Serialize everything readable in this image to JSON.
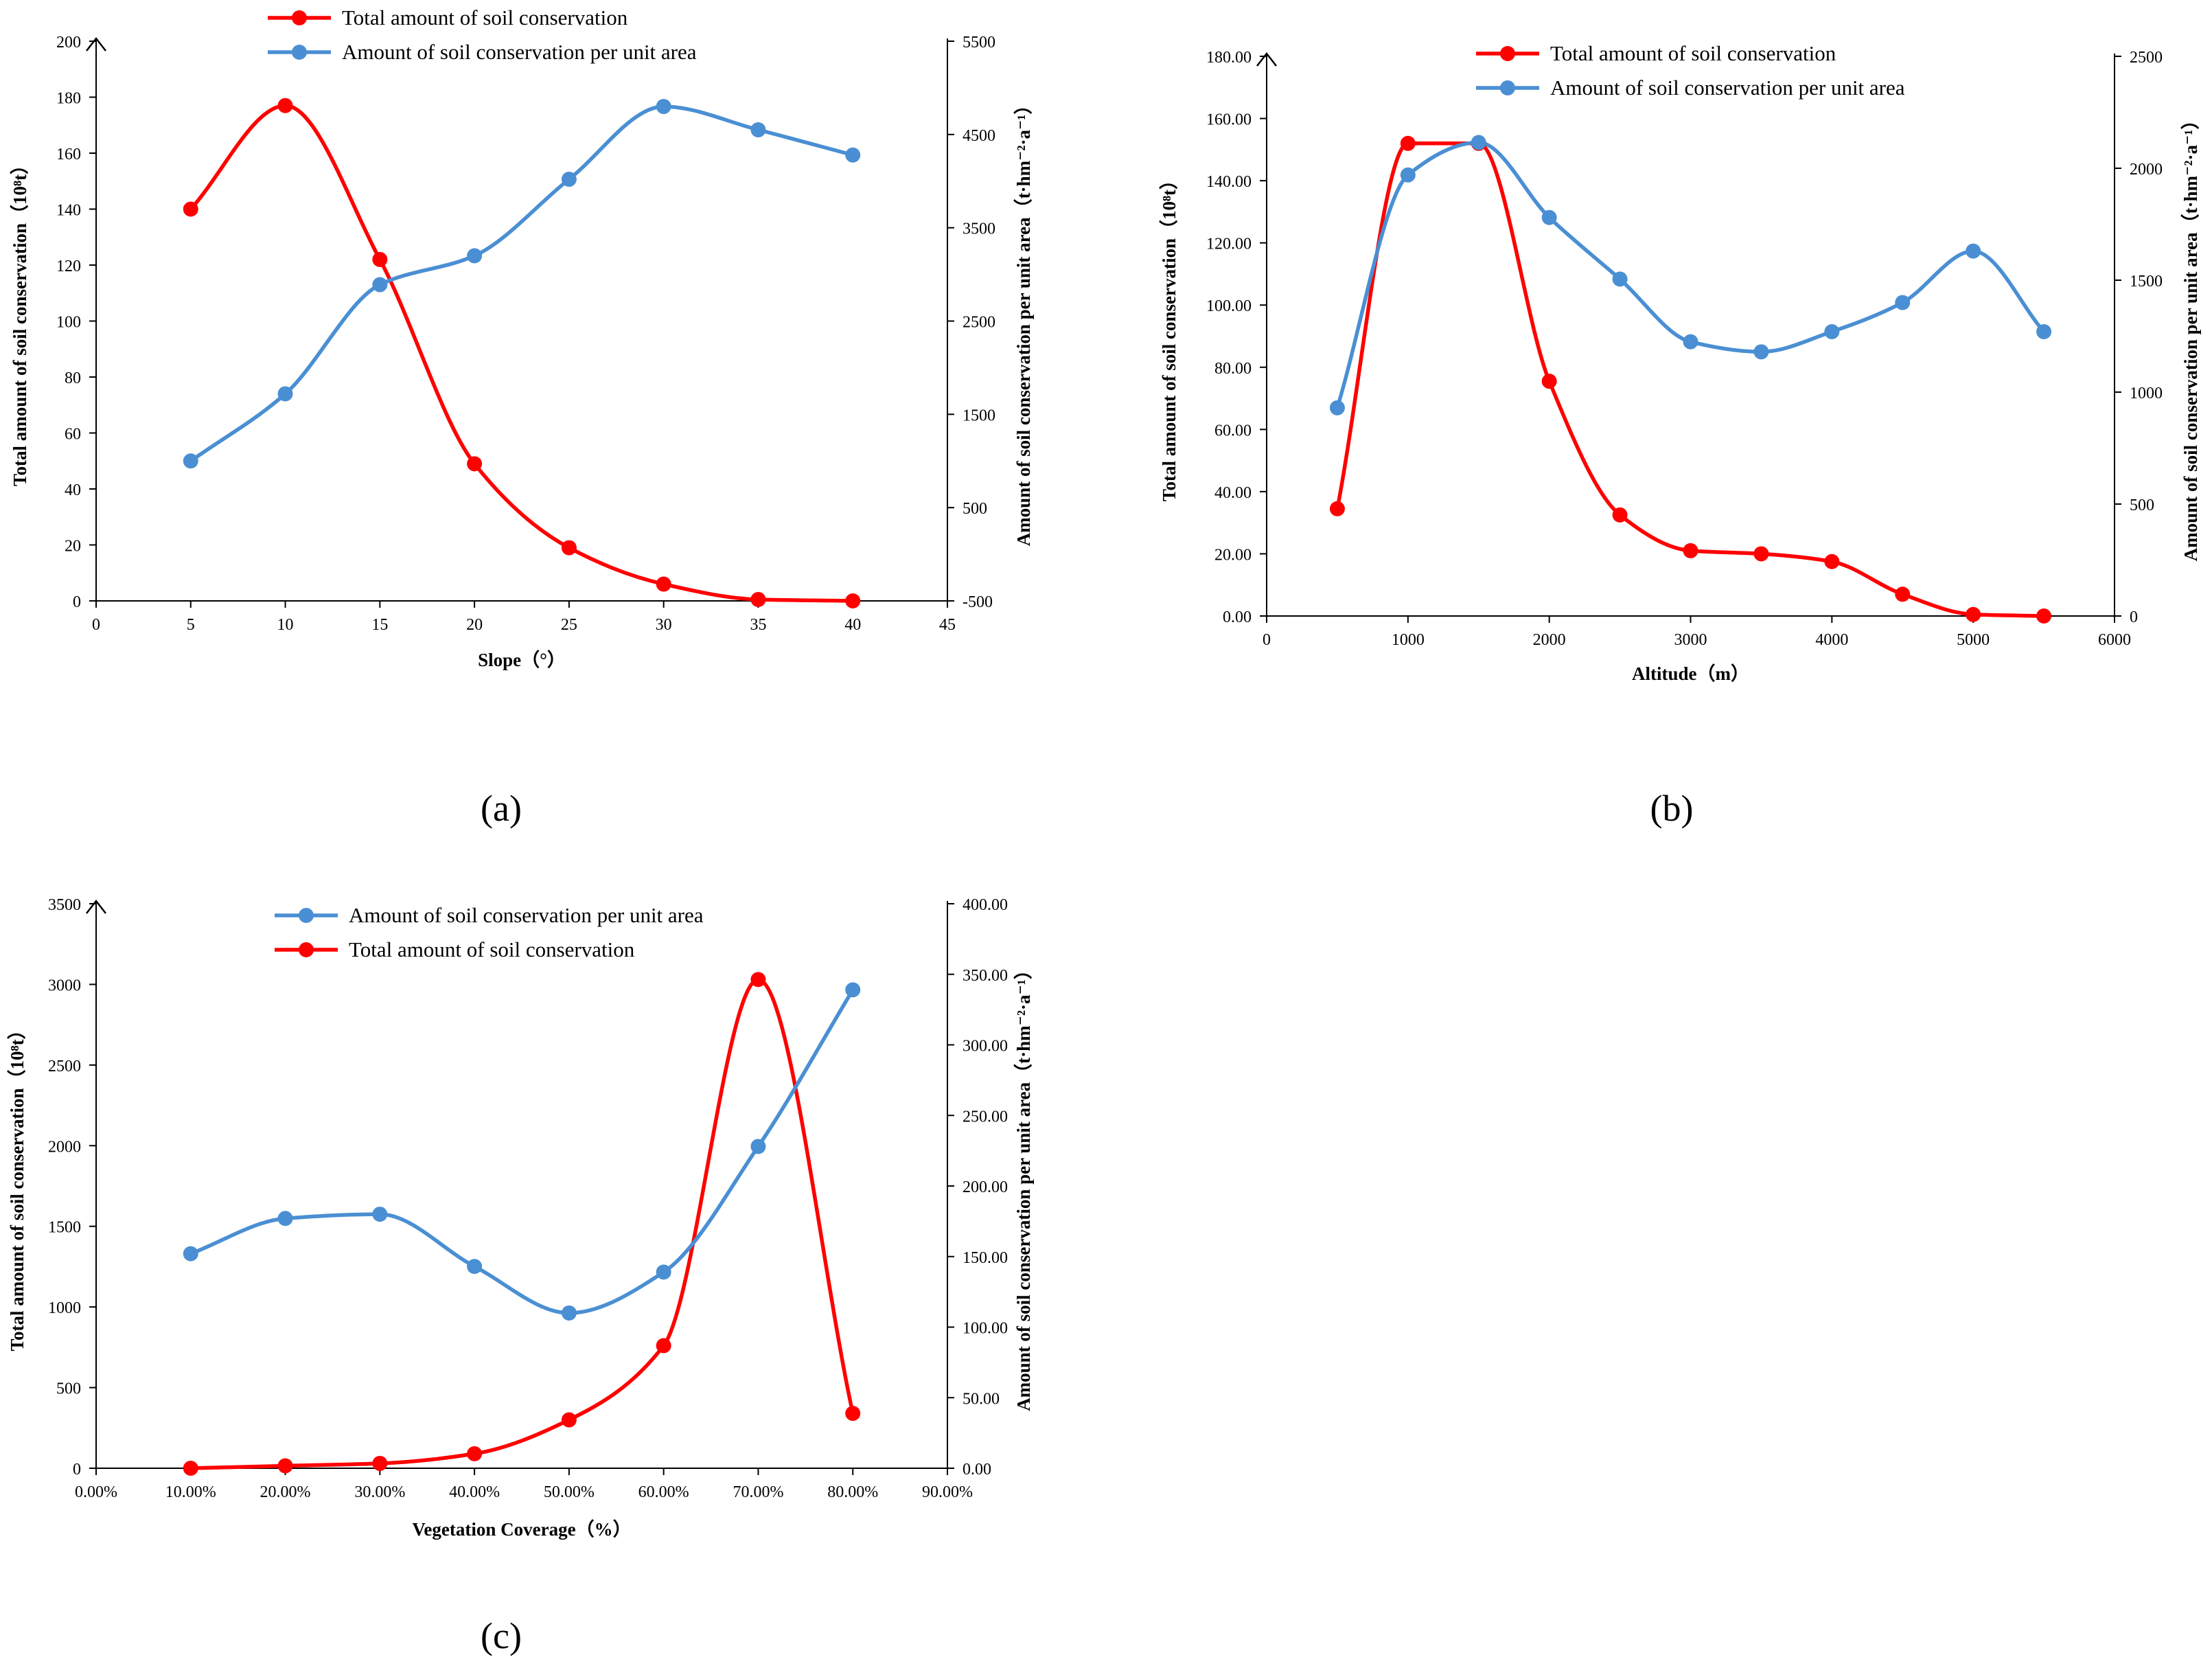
{
  "chart_data": [
    {
      "id": "a",
      "type": "line",
      "panel_label": "(a)",
      "xlabel": "Slope（°）",
      "ylabel_left": "Total amount of soil conservation（10⁸t）",
      "ylabel_right": "Amount of soil conservation per unit area（t·hm⁻²·a⁻¹）",
      "xlim": [
        0,
        45
      ],
      "xticks": [
        0,
        5,
        10,
        15,
        20,
        25,
        30,
        35,
        40,
        45
      ],
      "xtick_labels": [
        "0",
        "5",
        "10",
        "15",
        "20",
        "25",
        "30",
        "35",
        "40",
        "45"
      ],
      "ylim_left": [
        0,
        200
      ],
      "yticks_left": [
        0,
        20,
        40,
        60,
        80,
        100,
        120,
        140,
        160,
        180,
        200
      ],
      "ytick_labels_left": [
        "0",
        "20",
        "40",
        "60",
        "80",
        "100",
        "120",
        "140",
        "160",
        "180",
        "200"
      ],
      "ylim_right": [
        -500,
        5500
      ],
      "yticks_right": [
        -500,
        500,
        1500,
        2500,
        3500,
        4500,
        5500
      ],
      "ytick_labels_right": [
        "-500",
        "500",
        "1500",
        "2500",
        "3500",
        "4500",
        "5500"
      ],
      "x": [
        5,
        10,
        15,
        20,
        25,
        30,
        35,
        40
      ],
      "legend_order": [
        0,
        1
      ],
      "series": [
        {
          "name": "Total amount of soil conservation",
          "axis": "left",
          "color": "#ff0000",
          "values": [
            140,
            177,
            122,
            49,
            19,
            6,
            0.5,
            0
          ]
        },
        {
          "name": "Amount of soil conservation per unit area",
          "axis": "right",
          "color": "#4a8fd3",
          "values": [
            1000,
            1720,
            2890,
            3200,
            4020,
            4800,
            4550,
            4280
          ]
        }
      ]
    },
    {
      "id": "b",
      "type": "line",
      "panel_label": "(b)",
      "xlabel": "Altitude（m）",
      "ylabel_left": "Total amount of soil conservation（10⁸t）",
      "ylabel_right": "Amount of soil conservation per unit area（t·hm⁻²·a⁻¹）",
      "xlim": [
        0,
        6000
      ],
      "xticks": [
        0,
        1000,
        2000,
        3000,
        4000,
        5000,
        6000
      ],
      "xtick_labels": [
        "0",
        "1000",
        "2000",
        "3000",
        "4000",
        "5000",
        "6000"
      ],
      "ylim_left": [
        0,
        180
      ],
      "yticks_left": [
        0,
        20,
        40,
        60,
        80,
        100,
        120,
        140,
        160,
        180
      ],
      "ytick_labels_left": [
        "0.00",
        "20.00",
        "40.00",
        "60.00",
        "80.00",
        "100.00",
        "120.00",
        "140.00",
        "160.00",
        "180.00"
      ],
      "ylim_right": [
        0,
        2500
      ],
      "yticks_right": [
        0,
        500,
        1000,
        1500,
        2000,
        2500
      ],
      "ytick_labels_right": [
        "0",
        "500",
        "1000",
        "1500",
        "2000",
        "2500"
      ],
      "x": [
        500,
        1000,
        1500,
        2000,
        2500,
        3000,
        3500,
        4000,
        4500,
        5000,
        5500
      ],
      "legend_order": [
        0,
        1
      ],
      "series": [
        {
          "name": "Total amount of soil conservation",
          "axis": "left",
          "color": "#ff0000",
          "values": [
            34.5,
            152,
            152,
            75.5,
            32.5,
            21,
            20,
            17.5,
            7,
            0.5,
            0
          ]
        },
        {
          "name": "Amount of soil conservation per unit area",
          "axis": "right",
          "color": "#4a8fd3",
          "values": [
            930,
            1970,
            2115,
            1780,
            1505,
            1225,
            1180,
            1270,
            1400,
            1630,
            1270
          ]
        }
      ]
    },
    {
      "id": "c",
      "type": "line",
      "panel_label": "(c)",
      "xlabel": "Vegetation Coverage（%）",
      "ylabel_left": "Total amount of soil conservation（10⁸t）",
      "ylabel_right": "Amount of soil conservation per unit area（t·hm⁻²·a⁻¹）",
      "xlim": [
        0,
        90
      ],
      "xticks": [
        0,
        10,
        20,
        30,
        40,
        50,
        60,
        70,
        80,
        90
      ],
      "xtick_labels": [
        "0.00%",
        "10.00%",
        "20.00%",
        "30.00%",
        "40.00%",
        "50.00%",
        "60.00%",
        "70.00%",
        "80.00%",
        "90.00%"
      ],
      "ylim_left": [
        0,
        3500
      ],
      "yticks_left": [
        0,
        500,
        1000,
        1500,
        2000,
        2500,
        3000,
        3500
      ],
      "ytick_labels_left": [
        "0",
        "500",
        "1000",
        "1500",
        "2000",
        "2500",
        "3000",
        "3500"
      ],
      "ylim_right": [
        0,
        400
      ],
      "yticks_right": [
        0,
        50,
        100,
        150,
        200,
        250,
        300,
        350,
        400
      ],
      "ytick_labels_right": [
        "0.00",
        "50.00",
        "100.00",
        "150.00",
        "200.00",
        "250.00",
        "300.00",
        "350.00",
        "400.00"
      ],
      "x": [
        10,
        20,
        30,
        40,
        50,
        60,
        70,
        80
      ],
      "legend_order": [
        1,
        0
      ],
      "series": [
        {
          "name": "Total amount of soil conservation",
          "axis": "left",
          "color": "#ff0000",
          "values": [
            0,
            15,
            30,
            90,
            300,
            760,
            3030,
            340
          ]
        },
        {
          "name": "Amount of soil conservation per unit area",
          "axis": "right",
          "color": "#4a8fd3",
          "values": [
            152,
            177,
            180,
            143,
            110,
            139,
            228,
            339
          ]
        }
      ]
    }
  ]
}
